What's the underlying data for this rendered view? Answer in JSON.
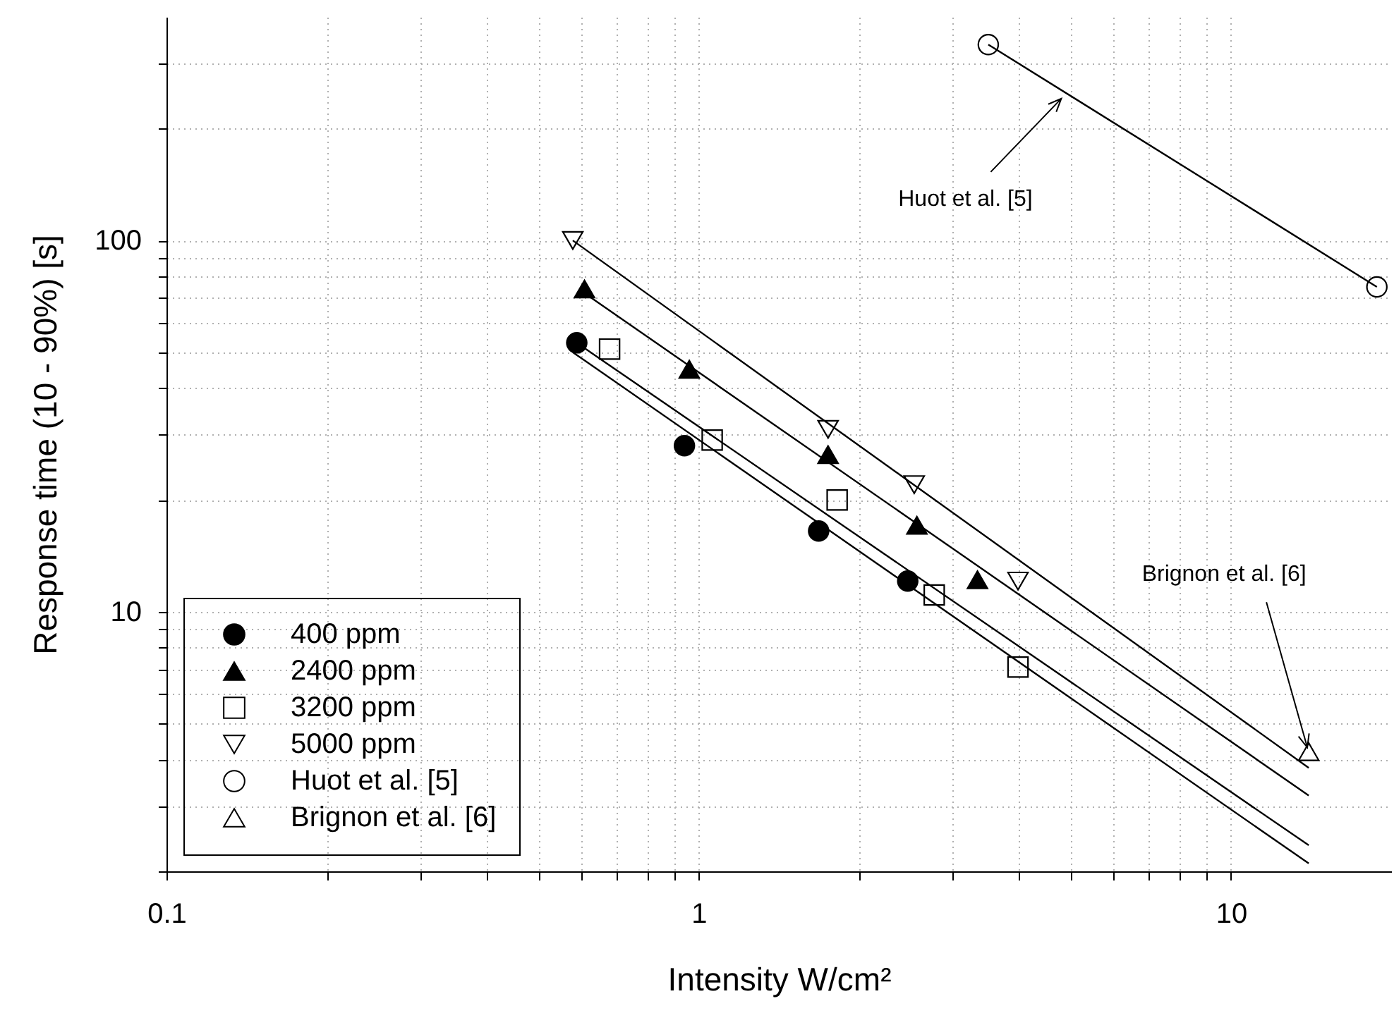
{
  "chart_data": {
    "type": "scatter",
    "xlabel": "Intensity W/cm²",
    "ylabel": "Response time (10 - 90%) [s]",
    "log": "xy",
    "grid": true,
    "legend": "bottom left",
    "xlim": [
      0.1,
      20
    ],
    "ylim": [
      2,
      400
    ],
    "xticks": [
      0.1,
      {
        "value": 0.2,
        "label": null
      },
      {
        "value": 0.3,
        "label": null
      },
      {
        "value": 0.4,
        "label": null
      },
      {
        "value": 0.5,
        "label": null
      },
      {
        "value": 0.6,
        "label": null
      },
      {
        "value": 0.7,
        "label": null
      },
      {
        "value": 0.8,
        "label": null
      },
      {
        "value": 0.9,
        "label": null
      },
      1,
      {
        "value": 2,
        "label": null
      },
      {
        "value": 3,
        "label": null
      },
      {
        "value": 4,
        "label": null
      },
      {
        "value": 5,
        "label": null
      },
      {
        "value": 6,
        "label": null
      },
      {
        "value": 7,
        "label": null
      },
      {
        "value": 8,
        "label": null
      },
      {
        "value": 9,
        "label": null
      },
      10
    ],
    "yticks": [
      {
        "value": 2,
        "label": null
      },
      {
        "value": 3,
        "label": null
      },
      {
        "value": 4,
        "label": null
      },
      {
        "value": 5,
        "label": null
      },
      {
        "value": 6,
        "label": null
      },
      {
        "value": 7,
        "label": null
      },
      {
        "value": 8,
        "label": null
      },
      {
        "value": 9,
        "label": null
      },
      10,
      {
        "value": 20,
        "label": null
      },
      {
        "value": 30,
        "label": null
      },
      {
        "value": 40,
        "label": null
      },
      {
        "value": 50,
        "label": null
      },
      {
        "value": 60,
        "label": null
      },
      {
        "value": 70,
        "label": null
      },
      {
        "value": 80,
        "label": null
      },
      {
        "value": 90,
        "label": null
      },
      100,
      {
        "value": 200,
        "label": null
      },
      {
        "value": 300,
        "label": null
      }
    ],
    "series": [
      {
        "name": "400 ppm",
        "type": "scatter",
        "marker": "circle",
        "color": "#000000",
        "x": [
          0.59,
          0.94,
          1.68,
          2.47
        ],
        "values": [
          53,
          28,
          16.5,
          12.1
        ]
      },
      {
        "name": "2400 ppm",
        "type": "scatter",
        "marker": "triangle",
        "color": "#000000",
        "x": [
          0.61,
          0.96,
          1.75,
          2.57,
          3.34
        ],
        "values": [
          74,
          45,
          26.5,
          17.1,
          12.2
        ]
      },
      {
        "name": "3200 ppm",
        "type": "scatter",
        "marker": "square-open",
        "color": "#000000",
        "x": [
          0.68,
          1.06,
          1.82,
          2.77,
          3.98
        ],
        "values": [
          51,
          29,
          20,
          11.1,
          7.1
        ]
      },
      {
        "name": "5000 ppm",
        "type": "scatter",
        "marker": "triangle-down-open",
        "color": "#000000",
        "x": [
          0.58,
          1.75,
          2.54,
          3.98
        ],
        "values": [
          100,
          31,
          22,
          12.1
        ]
      },
      {
        "name": "Huot et al. [5]",
        "type": "line",
        "marker": "circle-open",
        "color": "#000000",
        "x": [
          3.5,
          18.8
        ],
        "values": [
          337,
          75
        ]
      },
      {
        "name": "Brignon et al. [6]",
        "type": "scatter",
        "marker": "triangle-open",
        "color": "#000000",
        "x": [
          14
        ],
        "values": [
          4.2
        ]
      },
      {
        "type": "line",
        "marker": "none",
        "color": "#000000",
        "x": [
          0.58,
          14
        ],
        "values": [
          100,
          3.8
        ]
      },
      {
        "type": "line",
        "marker": "none",
        "color": "#000000",
        "x": [
          0.62,
          14
        ],
        "values": [
          71,
          3.2
        ]
      },
      {
        "type": "line",
        "marker": "none",
        "color": "#000000",
        "x": [
          0.59,
          14
        ],
        "values": [
          53,
          2.35
        ]
      },
      {
        "type": "line",
        "marker": "none",
        "color": "#000000",
        "x": [
          0.58,
          14
        ],
        "values": [
          50,
          2.1
        ]
      }
    ],
    "annotations": [
      {
        "text": "Huot et al. [5]",
        "x": 4.8,
        "y": 254
      },
      {
        "text": "Brignon et al. [6]",
        "x": 14,
        "y": 4.2
      }
    ]
  }
}
